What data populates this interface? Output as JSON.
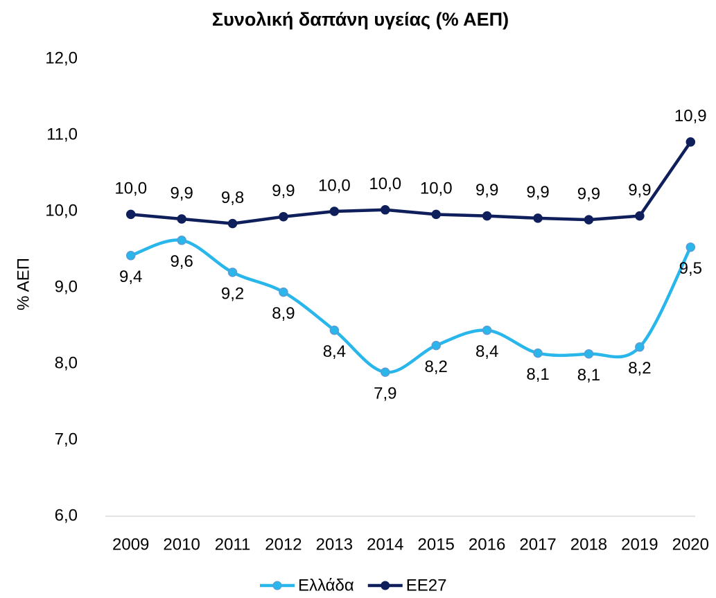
{
  "chart_data": {
    "type": "line",
    "title": "Συνολική δαπάνη υγείας (% ΑΕΠ)",
    "y_label": "% ΑΕΠ",
    "categories": [
      "2009",
      "2010",
      "2011",
      "2012",
      "2013",
      "2014",
      "2015",
      "2016",
      "2017",
      "2018",
      "2019",
      "2020"
    ],
    "series": [
      {
        "name": "Ελλάδα",
        "color": "#29b6ea",
        "smooth": true,
        "label_position": "below",
        "values": [
          9.42,
          9.62,
          9.2,
          8.94,
          8.44,
          7.89,
          8.24,
          8.44,
          8.14,
          8.13,
          8.22,
          9.53
        ],
        "value_labels": [
          "9,4",
          "9,6",
          "9,2",
          "8,9",
          "8,4",
          "7,9",
          "8,2",
          "8,4",
          "8,1",
          "8,1",
          "8,2",
          "9,5"
        ]
      },
      {
        "name": "ΕΕ27",
        "color": "#0e1f5b",
        "smooth": false,
        "label_position": "above",
        "values": [
          9.96,
          9.9,
          9.84,
          9.93,
          10.0,
          10.02,
          9.96,
          9.94,
          9.91,
          9.89,
          9.94,
          10.91
        ],
        "value_labels": [
          "10,0",
          "9,9",
          "9,8",
          "9,9",
          "10,0",
          "10,0",
          "10,0",
          "9,9",
          "9,9",
          "9,9",
          "9,9",
          "10,9"
        ]
      }
    ],
    "ylim": [
      6,
      12
    ],
    "yticks": [
      {
        "value": 6,
        "label": "6,0"
      },
      {
        "value": 7,
        "label": "7,0"
      },
      {
        "value": 8,
        "label": "8,0"
      },
      {
        "value": 9,
        "label": "9,0"
      },
      {
        "value": 10,
        "label": "10,0"
      },
      {
        "value": 11,
        "label": "11,0"
      },
      {
        "value": 12,
        "label": "12,0"
      }
    ],
    "grid": false,
    "legend": "bottom"
  }
}
